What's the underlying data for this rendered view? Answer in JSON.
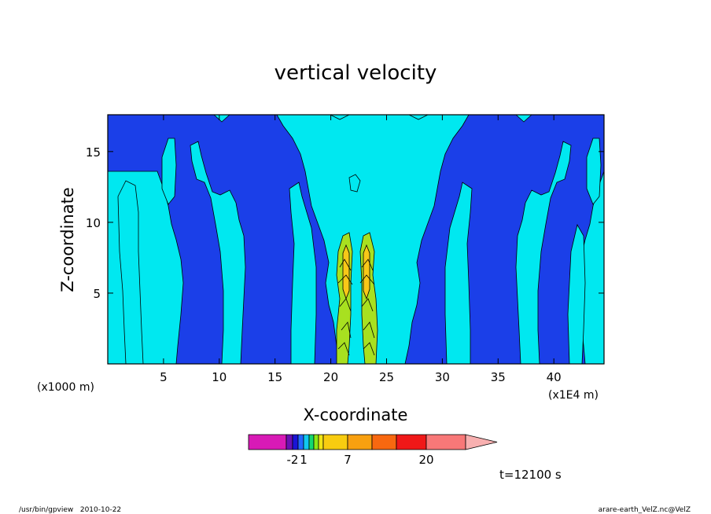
{
  "chart_data": {
    "type": "heatmap",
    "title": "vertical velocity",
    "xlabel": "X-coordinate",
    "ylabel": "Z-coordinate",
    "x_unit_left": "(x1000 m)",
    "x_unit_right": "(x1E4 m)",
    "xlim": [
      0,
      44.5
    ],
    "ylim": [
      0,
      17.6
    ],
    "x_ticks": [
      5,
      10,
      15,
      20,
      25,
      30,
      35,
      40
    ],
    "y_ticks": [
      5,
      10,
      15
    ],
    "colorbar": {
      "levels": [
        -2,
        1,
        7,
        20
      ],
      "labels": [
        "-2",
        "1",
        "7",
        "20"
      ],
      "colors": [
        "#d81ab6",
        "#6a10b4",
        "#1a14d6",
        "#2268ff",
        "#10c8f0",
        "#14d870",
        "#8ee814",
        "#f0e414",
        "#f8cc10",
        "#f8a010",
        "#f86810",
        "#f01818",
        "#f87878",
        "#f8b0b0"
      ]
    },
    "field_colors": {
      "background": "#00e8f0",
      "negative": "#1b3fe8",
      "positive_low": "#a8e020",
      "positive_high": "#f8c818",
      "contour": "#000000"
    },
    "time_label": "t=12100 s"
  },
  "footer": {
    "left": "/usr/bin/gpview   2010-10-22",
    "right": "arare-earth_VelZ.nc@VelZ"
  }
}
